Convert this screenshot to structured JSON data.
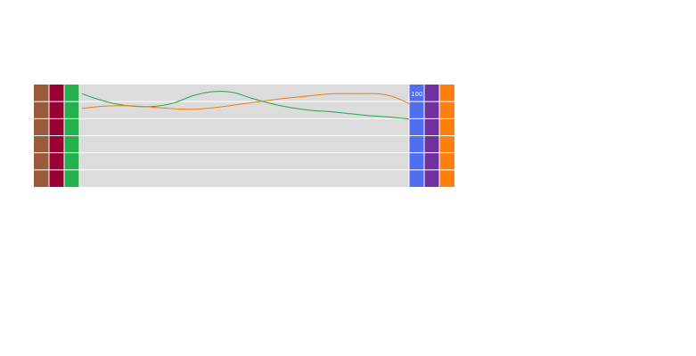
{
  "chart_data": {
    "type": "line",
    "title": "",
    "xlabel": "",
    "ylabel": "",
    "ylim": [
      0,
      100
    ],
    "y_tick_label": "100",
    "grid": true,
    "legend": "none",
    "left_axis_colors": [
      "#9a5b3c",
      "#990033",
      "#22b14c"
    ],
    "right_axis_colors": [
      "#4f6ff0",
      "#7030a0",
      "#ff7f0e"
    ],
    "plot_background": "#dcdcdc",
    "series": [
      {
        "color": "#22a84a",
        "x": [
          0,
          0.04,
          0.1,
          0.16,
          0.22,
          0.28,
          0.34,
          0.4,
          0.46,
          0.52,
          0.58,
          0.64,
          0.7,
          0.76,
          0.82,
          0.88,
          0.94,
          1
        ],
        "y": [
          73,
          66,
          58,
          54,
          54,
          59,
          70,
          76,
          75,
          66,
          58,
          52,
          48,
          46,
          43,
          40,
          38,
          35
        ]
      },
      {
        "color": "#f07d16",
        "x": [
          0,
          0.06,
          0.12,
          0.18,
          0.24,
          0.3,
          0.36,
          0.42,
          0.48,
          0.54,
          0.6,
          0.66,
          0.72,
          0.78,
          0.84,
          0.9,
          0.94,
          0.97,
          1
        ],
        "y": [
          51,
          54,
          55,
          54,
          52,
          50,
          50,
          53,
          57,
          61,
          65,
          68,
          71,
          73,
          73,
          73,
          70,
          65,
          58
        ]
      }
    ]
  }
}
